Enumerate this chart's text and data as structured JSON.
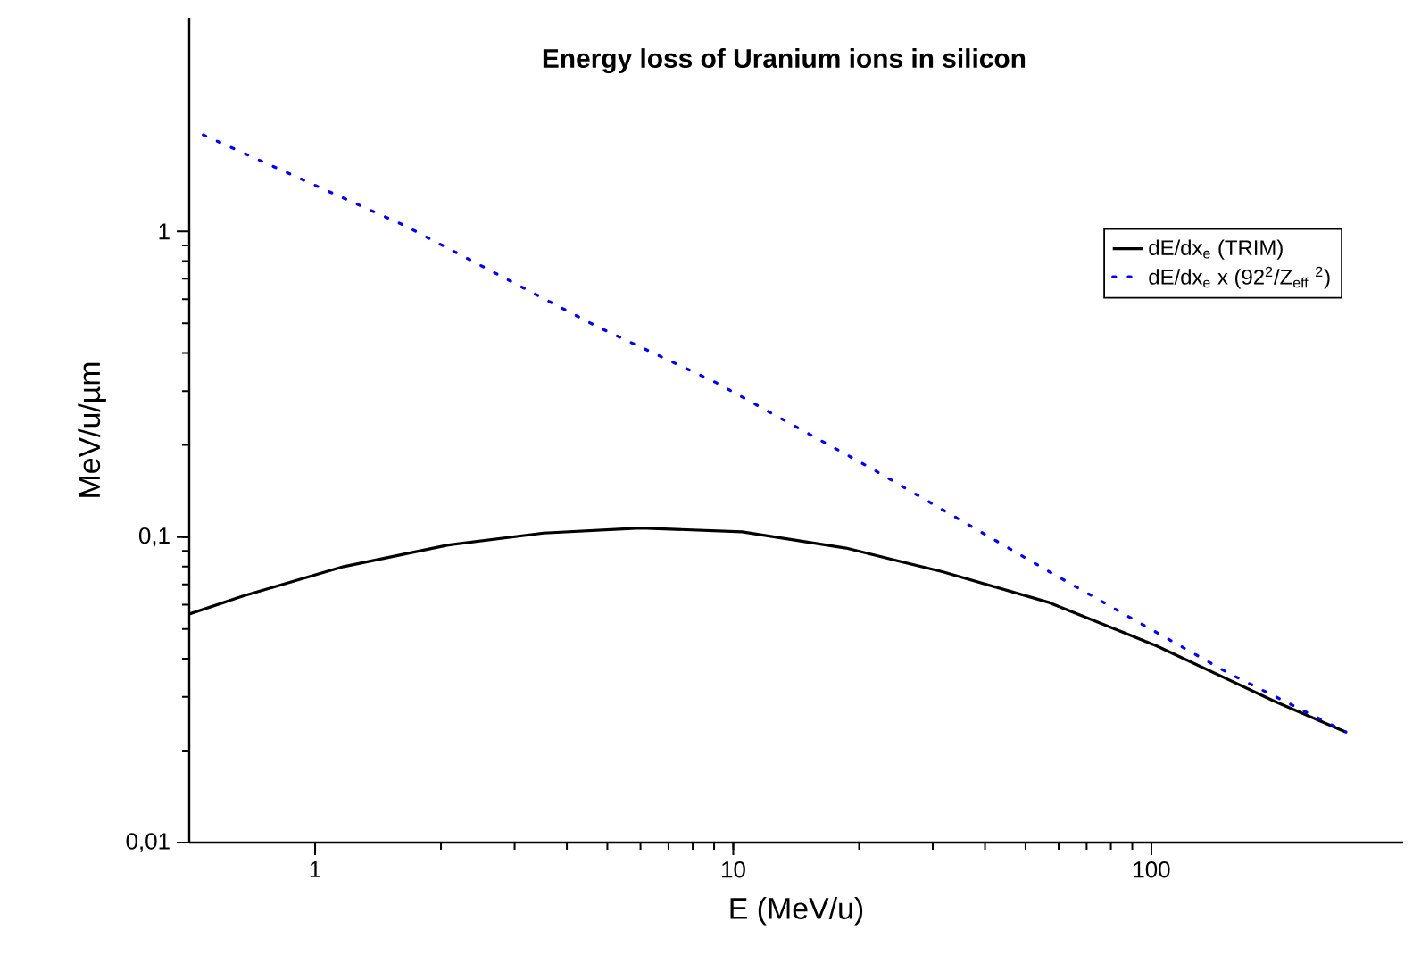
{
  "chart_data": {
    "type": "line",
    "title": "Energy loss of Uranium ions in silicon",
    "xlabel": "E (MeV/u)",
    "ylabel": "MeV/u/µm",
    "log": "xy",
    "xlim": [
      0.5,
      400
    ],
    "ylim": [
      0.01,
      5
    ],
    "xticks": [
      1,
      10,
      100
    ],
    "yticks": [
      {
        "value": 0.01,
        "label": "0,01"
      },
      {
        "value": 0.1,
        "label": "0,1"
      },
      {
        "value": 1,
        "label": "1"
      }
    ],
    "legend": "top right",
    "grid": false,
    "series": [
      {
        "name": "dE/dx$_{e}$ (TRIM)",
        "color": "#000000",
        "line_style": "solid",
        "x": [
          0.5,
          0.67,
          1.17,
          2.07,
          3.52,
          6.0,
          10.5,
          18.6,
          31.6,
          57,
          103,
          197,
          292
        ],
        "values": [
          0.056,
          0.064,
          0.08,
          0.094,
          0.103,
          0.107,
          0.104,
          0.092,
          0.077,
          0.061,
          0.044,
          0.029,
          0.023
        ]
      },
      {
        "name": "dE/dx$_{e}$ x (92$^{2}$/Z$_{eff}$ $^{2}$)",
        "color": "#0000ff",
        "line_style": "dotted",
        "x": [
          0.54,
          1.65,
          4.7,
          9.1,
          21.5,
          57,
          152,
          292
        ],
        "values": [
          2.07,
          1.04,
          0.49,
          0.32,
          0.167,
          0.077,
          0.036,
          0.023
        ]
      }
    ]
  }
}
